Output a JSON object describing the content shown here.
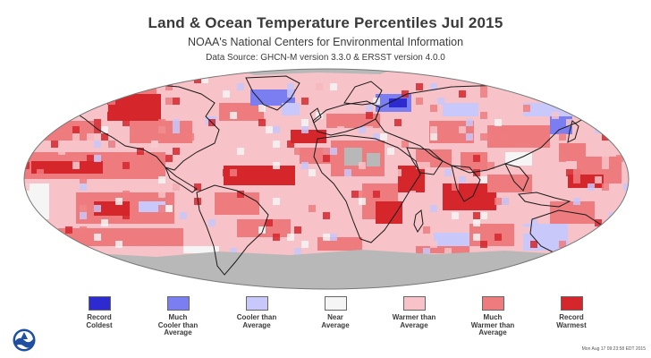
{
  "header": {
    "title": "Land & Ocean Temperature Percentiles Jul 2015",
    "subtitle": "NOAA's National Centers for Environmental Information",
    "source": "Data Source: GHCN-M version 3.3.0 & ERSST version 4.0.0"
  },
  "colors": {
    "record_coldest": "#2d2bd0",
    "much_cooler": "#7b7ef0",
    "cooler": "#c8c8fa",
    "near_average": "#f5f5f5",
    "warmer": "#f7c3c8",
    "much_warmer": "#ee7c7f",
    "record_warmest": "#d5262c",
    "missing": "#b8b8b8",
    "coastline": "#1a1a1a"
  },
  "legend": [
    {
      "label": "Record\nColdest",
      "color": "#2d2bd0"
    },
    {
      "label": "Much\nCooler than\nAverage",
      "color": "#7b7ef0"
    },
    {
      "label": "Cooler than\nAverage",
      "color": "#c8c8fa"
    },
    {
      "label": "Near\nAverage",
      "color": "#f5f5f5"
    },
    {
      "label": "Warmer than\nAverage",
      "color": "#f7c3c8"
    },
    {
      "label": "Much\nWarmer than\nAverage",
      "color": "#ee7c7f"
    },
    {
      "label": "Record\nWarmest",
      "color": "#d5262c"
    }
  ],
  "footer": {
    "timestamp": "Mon Aug 17 09:23:58 EDT 2015",
    "logo_icon": "noaa-logo-icon"
  }
}
